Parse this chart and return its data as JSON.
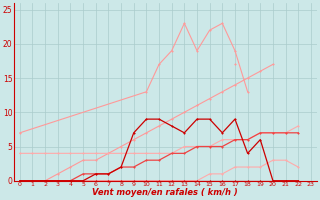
{
  "title": "",
  "xlabel": "Vent moyen/en rafales ( km/h )",
  "ylabel": "",
  "background_color": "#cce8e8",
  "grid_color": "#aacccc",
  "x_values": [
    0,
    1,
    2,
    3,
    4,
    5,
    6,
    7,
    8,
    9,
    10,
    11,
    12,
    13,
    14,
    15,
    16,
    17,
    18,
    19,
    20,
    21,
    22,
    23
  ],
  "xlim": [
    -0.5,
    23.5
  ],
  "ylim": [
    0,
    26
  ],
  "yticks": [
    0,
    5,
    10,
    15,
    20,
    25
  ],
  "series": [
    {
      "color": "#ff9999",
      "linewidth": 0.8,
      "markersize": 1.8,
      "marker": "+",
      "y": [
        7,
        null,
        null,
        null,
        null,
        null,
        null,
        null,
        null,
        null,
        13,
        17,
        19,
        23,
        19,
        22,
        23,
        19,
        13,
        null,
        null,
        null,
        null,
        null
      ]
    },
    {
      "color": "#ff9999",
      "linewidth": 0.8,
      "markersize": 1.8,
      "marker": "+",
      "y": [
        null,
        null,
        null,
        null,
        null,
        null,
        null,
        null,
        null,
        null,
        null,
        null,
        null,
        null,
        null,
        null,
        null,
        17,
        null,
        null,
        null,
        null,
        null,
        null
      ]
    },
    {
      "color": "#ff9999",
      "linewidth": 0.8,
      "markersize": 1.8,
      "marker": "+",
      "y": [
        0,
        0,
        0,
        1,
        2,
        3,
        3,
        4,
        5,
        6,
        7,
        8,
        9,
        10,
        11,
        12,
        13,
        14,
        15,
        16,
        17,
        null,
        null,
        null
      ]
    },
    {
      "color": "#ffaaaa",
      "linewidth": 0.8,
      "markersize": 1.8,
      "marker": "+",
      "y": [
        4,
        4,
        4,
        4,
        4,
        4,
        4,
        4,
        4,
        4,
        4,
        4,
        4,
        5,
        5,
        5,
        6,
        6,
        6,
        7,
        7,
        7,
        8,
        null
      ]
    },
    {
      "color": "#ffaaaa",
      "linewidth": 0.8,
      "markersize": 1.8,
      "marker": "+",
      "y": [
        0,
        0,
        0,
        0,
        0,
        0,
        0,
        0,
        0,
        0,
        0,
        0,
        0,
        0,
        0,
        1,
        1,
        2,
        2,
        2,
        3,
        3,
        2,
        null
      ]
    },
    {
      "color": "#ee4444",
      "linewidth": 0.9,
      "markersize": 2.0,
      "marker": "+",
      "y": [
        0,
        0,
        0,
        0,
        0,
        1,
        1,
        1,
        2,
        2,
        3,
        3,
        4,
        4,
        5,
        5,
        5,
        6,
        6,
        7,
        7,
        7,
        7,
        null
      ]
    },
    {
      "color": "#cc0000",
      "linewidth": 0.9,
      "markersize": 2.0,
      "marker": "+",
      "y": [
        0,
        0,
        0,
        0,
        0,
        0,
        1,
        1,
        2,
        7,
        9,
        9,
        8,
        7,
        9,
        9,
        7,
        9,
        4,
        6,
        0,
        0,
        0,
        null
      ]
    },
    {
      "color": "#cc0000",
      "linewidth": 0.9,
      "markersize": 2.0,
      "marker": "+",
      "y": [
        0,
        0,
        0,
        0,
        0,
        0,
        0,
        0,
        0,
        0,
        0,
        0,
        0,
        0,
        0,
        0,
        0,
        0,
        0,
        0,
        0,
        0,
        0,
        null
      ]
    }
  ]
}
